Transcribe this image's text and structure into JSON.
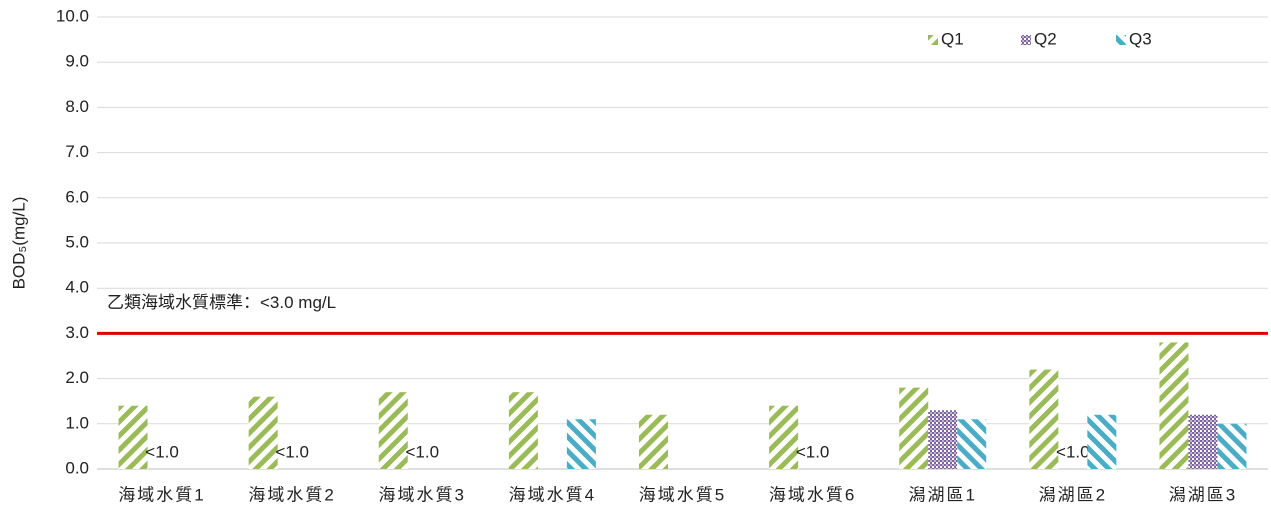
{
  "chart_data": {
    "type": "bar",
    "y_label": "BOD₅(mg/L)",
    "categories": [
      "海域水質1",
      "海域水質2",
      "海域水質3",
      "海域水質4",
      "海域水質5",
      "海域水質6",
      "潟湖區1",
      "潟湖區2",
      "潟湖區3"
    ],
    "series": [
      {
        "name": "Q1",
        "color": "#9bbb59",
        "pattern": "diagonal",
        "values": [
          1.4,
          1.6,
          1.7,
          1.7,
          1.2,
          1.4,
          1.8,
          2.2,
          2.8
        ]
      },
      {
        "name": "Q2",
        "color": "#8064a2",
        "pattern": "checker",
        "values": [
          null,
          null,
          null,
          null,
          null,
          null,
          1.3,
          null,
          1.2
        ],
        "value_labels": [
          "<1.0",
          "<1.0",
          "<1.0",
          null,
          null,
          "<1.0",
          null,
          "<1.0",
          null
        ]
      },
      {
        "name": "Q3",
        "color": "#4bacc6",
        "pattern": "anti-diagonal",
        "values": [
          null,
          null,
          null,
          1.1,
          null,
          null,
          1.1,
          1.2,
          1.0
        ]
      }
    ],
    "reference_line": {
      "value": 3.0,
      "label": "乙類海域水質標準：<3.0 mg/L",
      "color": "#e00000"
    },
    "ylim": [
      0,
      10
    ],
    "yticks": [
      {
        "value": 0,
        "label": "0.0"
      },
      {
        "value": 1,
        "label": "1.0"
      },
      {
        "value": 2,
        "label": "2.0"
      },
      {
        "value": 3,
        "label": "3.0"
      },
      {
        "value": 4,
        "label": "4.0"
      },
      {
        "value": 5,
        "label": "5.0"
      },
      {
        "value": 6,
        "label": "6.0"
      },
      {
        "value": 7,
        "label": "7.0"
      },
      {
        "value": 8,
        "label": "8.0"
      },
      {
        "value": 9,
        "label": "9.0"
      },
      {
        "value": 10,
        "label": "10.0"
      }
    ],
    "grid": true,
    "legend": "top-right"
  }
}
